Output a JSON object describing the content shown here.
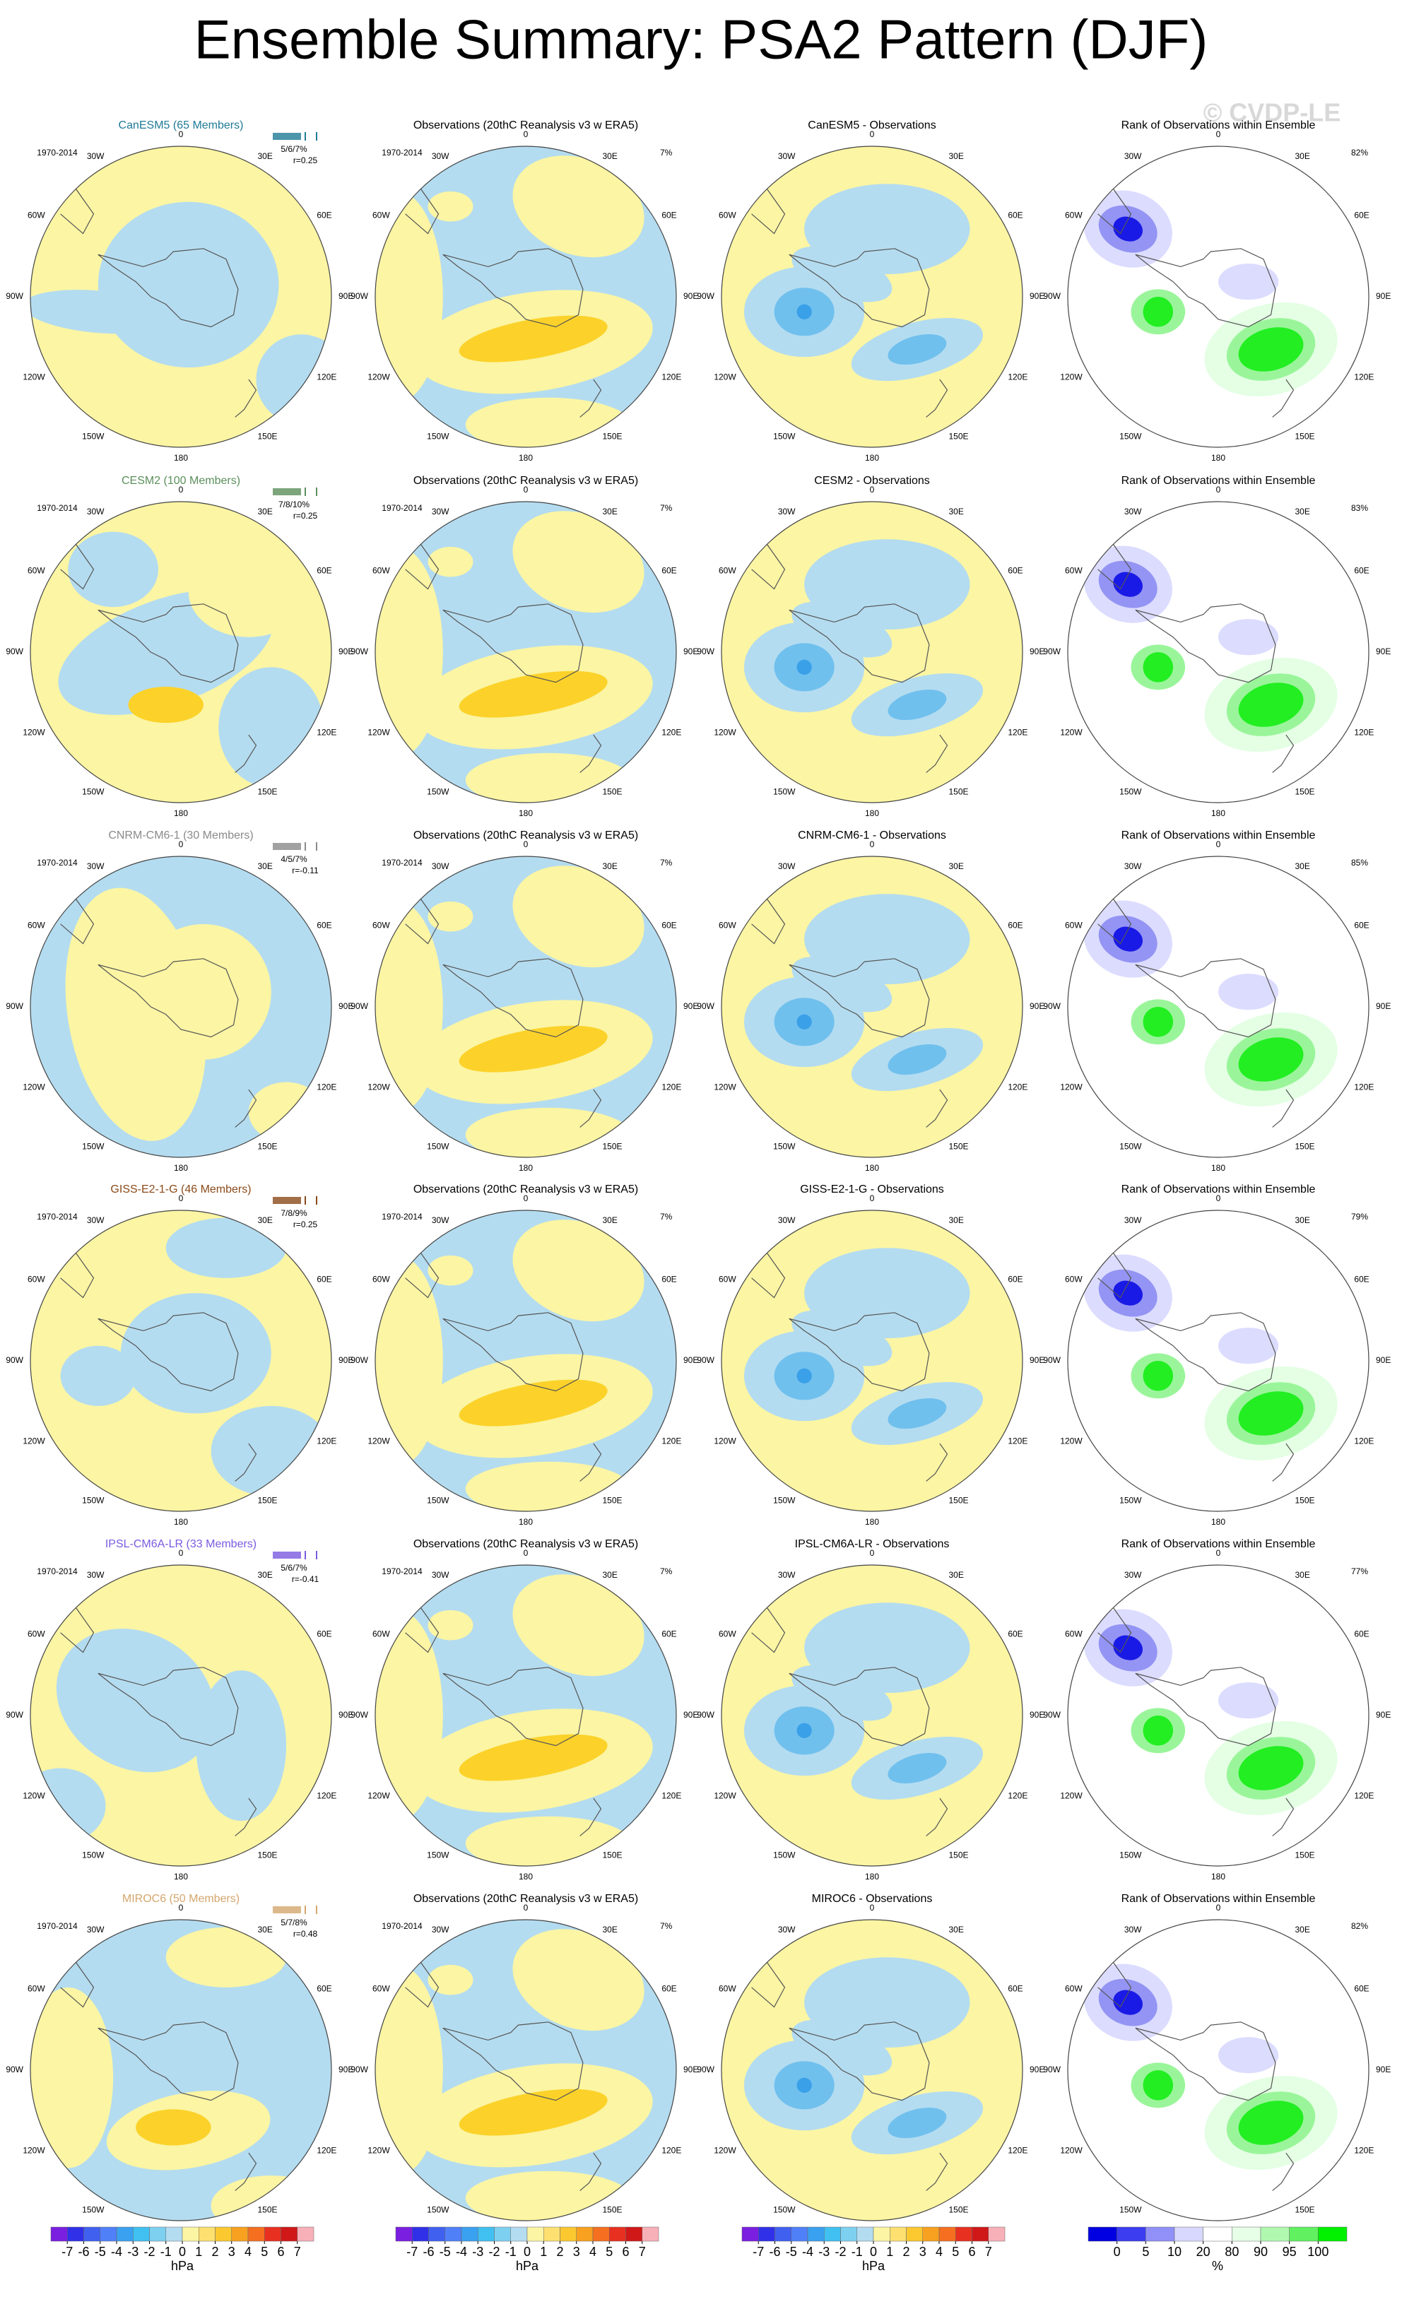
{
  "title": "Ensemble Summary: PSA2 Pattern (DJF)",
  "watermark": "© CVDP-LE",
  "period": "1970-2014",
  "longitudes": [
    "0",
    "30E",
    "60E",
    "90E",
    "120E",
    "150E",
    "180",
    "150W",
    "120W",
    "90W",
    "60W",
    "30W"
  ],
  "rows": [
    {
      "model_title": "CanESM5 (65 Members)",
      "model_color": "#1f7a96",
      "pct": "5/6/7%",
      "r": "r=0.25",
      "obs_title": "Observations (20thC Reanalysis v3 w ERA5)",
      "obs_pct": "7%",
      "diff_title": "CanESM5 - Observations",
      "rank_title": "Rank of Observations within Ensemble",
      "rank_pct": "82%"
    },
    {
      "model_title": "CESM2 (100 Members)",
      "model_color": "#5b8f5b",
      "pct": "7/8/10%",
      "r": "r=0.25",
      "obs_title": "Observations (20thC Reanalysis v3 w ERA5)",
      "obs_pct": "7%",
      "diff_title": "CESM2 - Observations",
      "rank_title": "Rank of Observations within Ensemble",
      "rank_pct": "83%"
    },
    {
      "model_title": "CNRM-CM6-1 (30 Members)",
      "model_color": "#8a8a8a",
      "pct": "4/5/7%",
      "r": "r=-0.11",
      "obs_title": "Observations (20thC Reanalysis v3 w ERA5)",
      "obs_pct": "7%",
      "diff_title": "CNRM-CM6-1 - Observations",
      "rank_title": "Rank of Observations within Ensemble",
      "rank_pct": "85%"
    },
    {
      "model_title": "GISS-E2-1-G (46 Members)",
      "model_color": "#8b4a1a",
      "pct": "7/8/9%",
      "r": "r=0.25",
      "obs_title": "Observations (20thC Reanalysis v3 w ERA5)",
      "obs_pct": "7%",
      "diff_title": "GISS-E2-1-G - Observations",
      "rank_title": "Rank of Observations within Ensemble",
      "rank_pct": "79%"
    },
    {
      "model_title": "IPSL-CM6A-LR (33 Members)",
      "model_color": "#7a5ae0",
      "pct": "5/6/7%",
      "r": "r=-0.41",
      "obs_title": "Observations (20thC Reanalysis v3 w ERA5)",
      "obs_pct": "7%",
      "diff_title": "IPSL-CM6A-LR - Observations",
      "rank_title": "Rank of Observations within Ensemble",
      "rank_pct": "77%"
    },
    {
      "model_title": "MIROC6 (50 Members)",
      "model_color": "#d4a66e",
      "pct": "5/7/8%",
      "r": "r=0.48",
      "obs_title": "Observations (20thC Reanalysis v3 w ERA5)",
      "obs_pct": "7%",
      "diff_title": "MIROC6 - Observations",
      "rank_title": "Rank of Observations within Ensemble",
      "rank_pct": "82%"
    }
  ],
  "colorbars": {
    "hpa": {
      "unit": "hPa",
      "ticks": [
        -7,
        -6,
        -5,
        -4,
        -3,
        -2,
        -1,
        0,
        1,
        2,
        3,
        4,
        5,
        6,
        7
      ],
      "colors": [
        "#7a1fe0",
        "#3030e8",
        "#4060f0",
        "#5080f8",
        "#3aa0f0",
        "#40c0f0",
        "#7ed0f0",
        "#b4dcf0",
        "#fbf5a4",
        "#fde070",
        "#fcc830",
        "#f8a020",
        "#f47020",
        "#e83020",
        "#d01818",
        "#f8b0b8"
      ]
    },
    "rank": {
      "unit": "%",
      "ticks": [
        0,
        5,
        10,
        20,
        80,
        90,
        95,
        100
      ],
      "colors": [
        "#0000e0",
        "#3c3cf0",
        "#9090f8",
        "#d8d8ff",
        "#ffffff",
        "#e6ffe6",
        "#b0f8b0",
        "#60f060",
        "#00f000"
      ]
    }
  }
}
